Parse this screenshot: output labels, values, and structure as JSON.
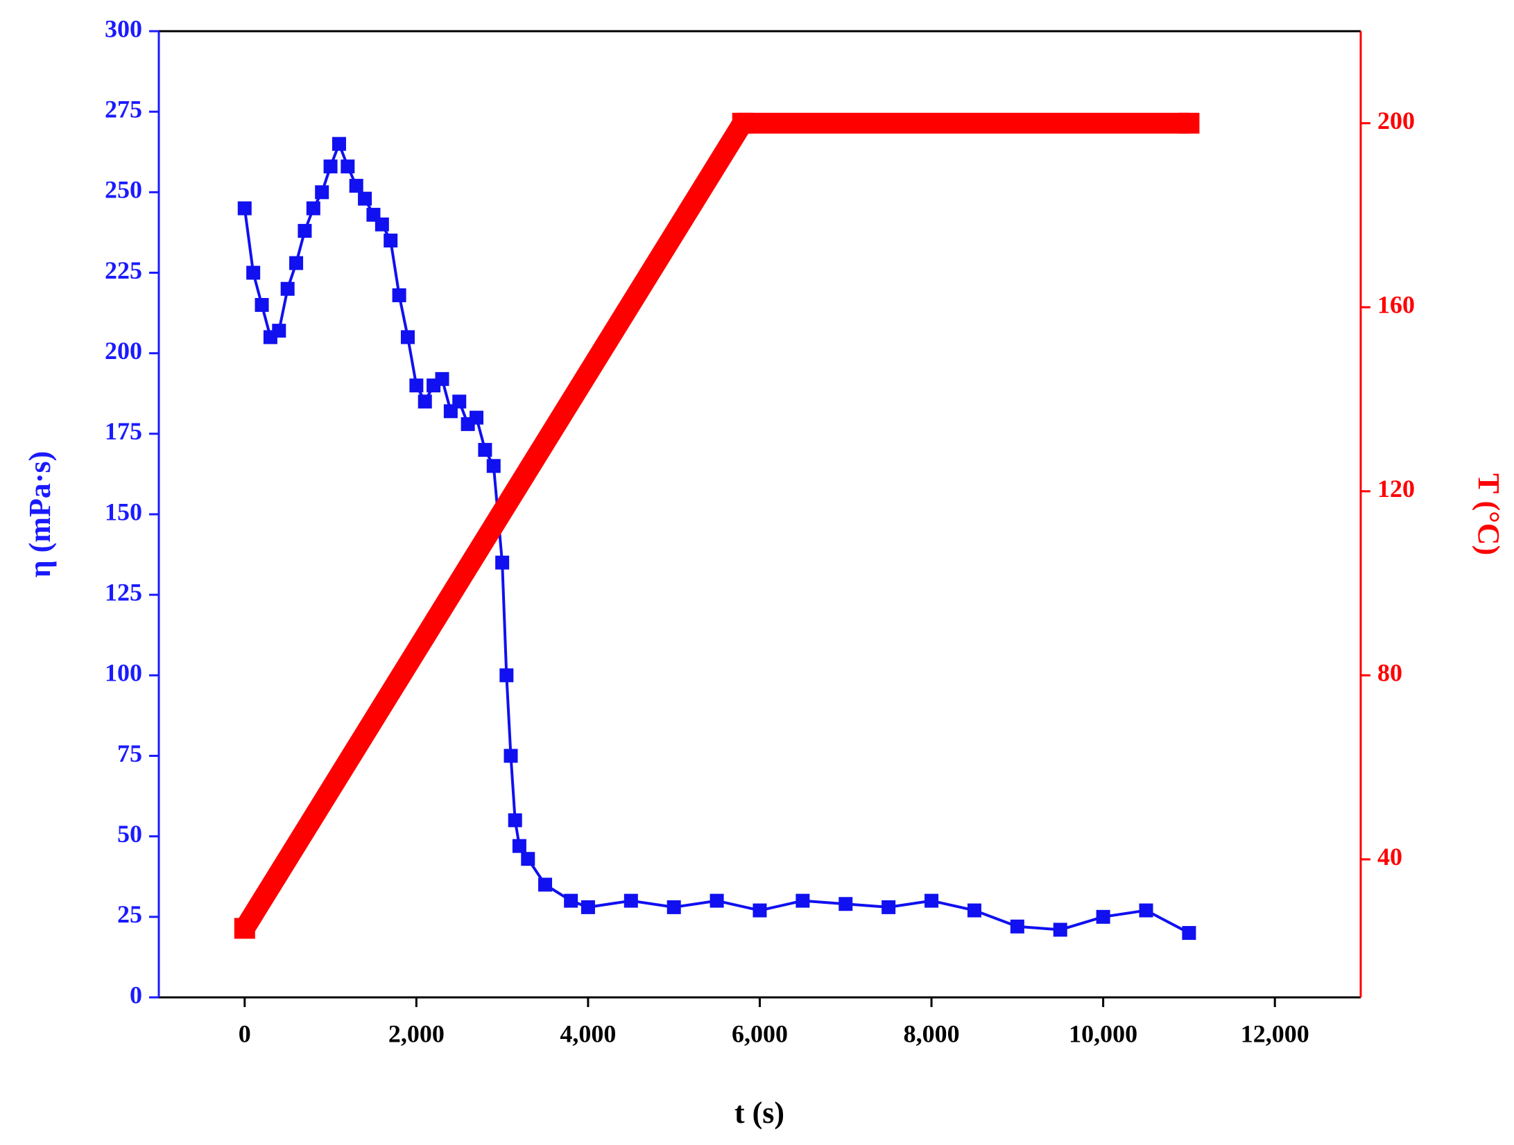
{
  "chart_data": {
    "type": "line",
    "xlabel": "t (s)",
    "ylabel": "η (mPa·s)",
    "y2label": "T (°C)",
    "xlim": [
      -1000,
      13000
    ],
    "xticks": [
      0,
      {
        "value": 2000,
        "label": "2,000"
      },
      {
        "value": 4000,
        "label": "4,000"
      },
      {
        "value": 6000,
        "label": "6,000"
      },
      {
        "value": 8000,
        "label": "8,000"
      },
      {
        "value": 10000,
        "label": "10,000"
      },
      {
        "value": 12000,
        "label": "12,000"
      }
    ],
    "ylim": [
      0,
      300
    ],
    "yticks": [
      0,
      25,
      50,
      75,
      100,
      125,
      150,
      175,
      200,
      225,
      250,
      275,
      300
    ],
    "y2lim": [
      10,
      220
    ],
    "y2ticks": [
      40,
      80,
      120,
      160,
      200
    ],
    "ycolor": "#1a1aff",
    "y2color": "#ff0000",
    "series": [
      {
        "color": "#1010f0",
        "marker": "square",
        "axis": "y",
        "x": [
          0,
          100,
          200,
          300,
          400,
          500,
          600,
          700,
          800,
          900,
          1000,
          1100,
          1200,
          1300,
          1400,
          1500,
          1600,
          1700,
          1800,
          1900,
          2000,
          2100,
          2200,
          2300,
          2400,
          2500,
          2600,
          2700,
          2800,
          2900,
          3000,
          3050,
          3100,
          3150,
          3200,
          3300,
          3500,
          3800,
          4000,
          4500,
          5000,
          5500,
          6000,
          6500,
          7000,
          7500,
          8000,
          8500,
          9000,
          9500,
          10000,
          10500,
          11000
        ],
        "values": [
          245,
          225,
          215,
          205,
          207,
          220,
          228,
          238,
          245,
          250,
          258,
          265,
          258,
          252,
          248,
          243,
          240,
          235,
          218,
          205,
          190,
          185,
          190,
          192,
          182,
          185,
          178,
          180,
          170,
          165,
          135,
          100,
          75,
          55,
          47,
          43,
          35,
          30,
          28,
          30,
          28,
          30,
          27,
          30,
          29,
          28,
          30,
          27,
          22,
          21,
          25,
          27,
          20
        ]
      },
      {
        "color": "#ff0000",
        "marker": "square",
        "axis": "y2",
        "x": [
          0,
          5800,
          11000
        ],
        "values": [
          25,
          200,
          200
        ]
      }
    ]
  }
}
